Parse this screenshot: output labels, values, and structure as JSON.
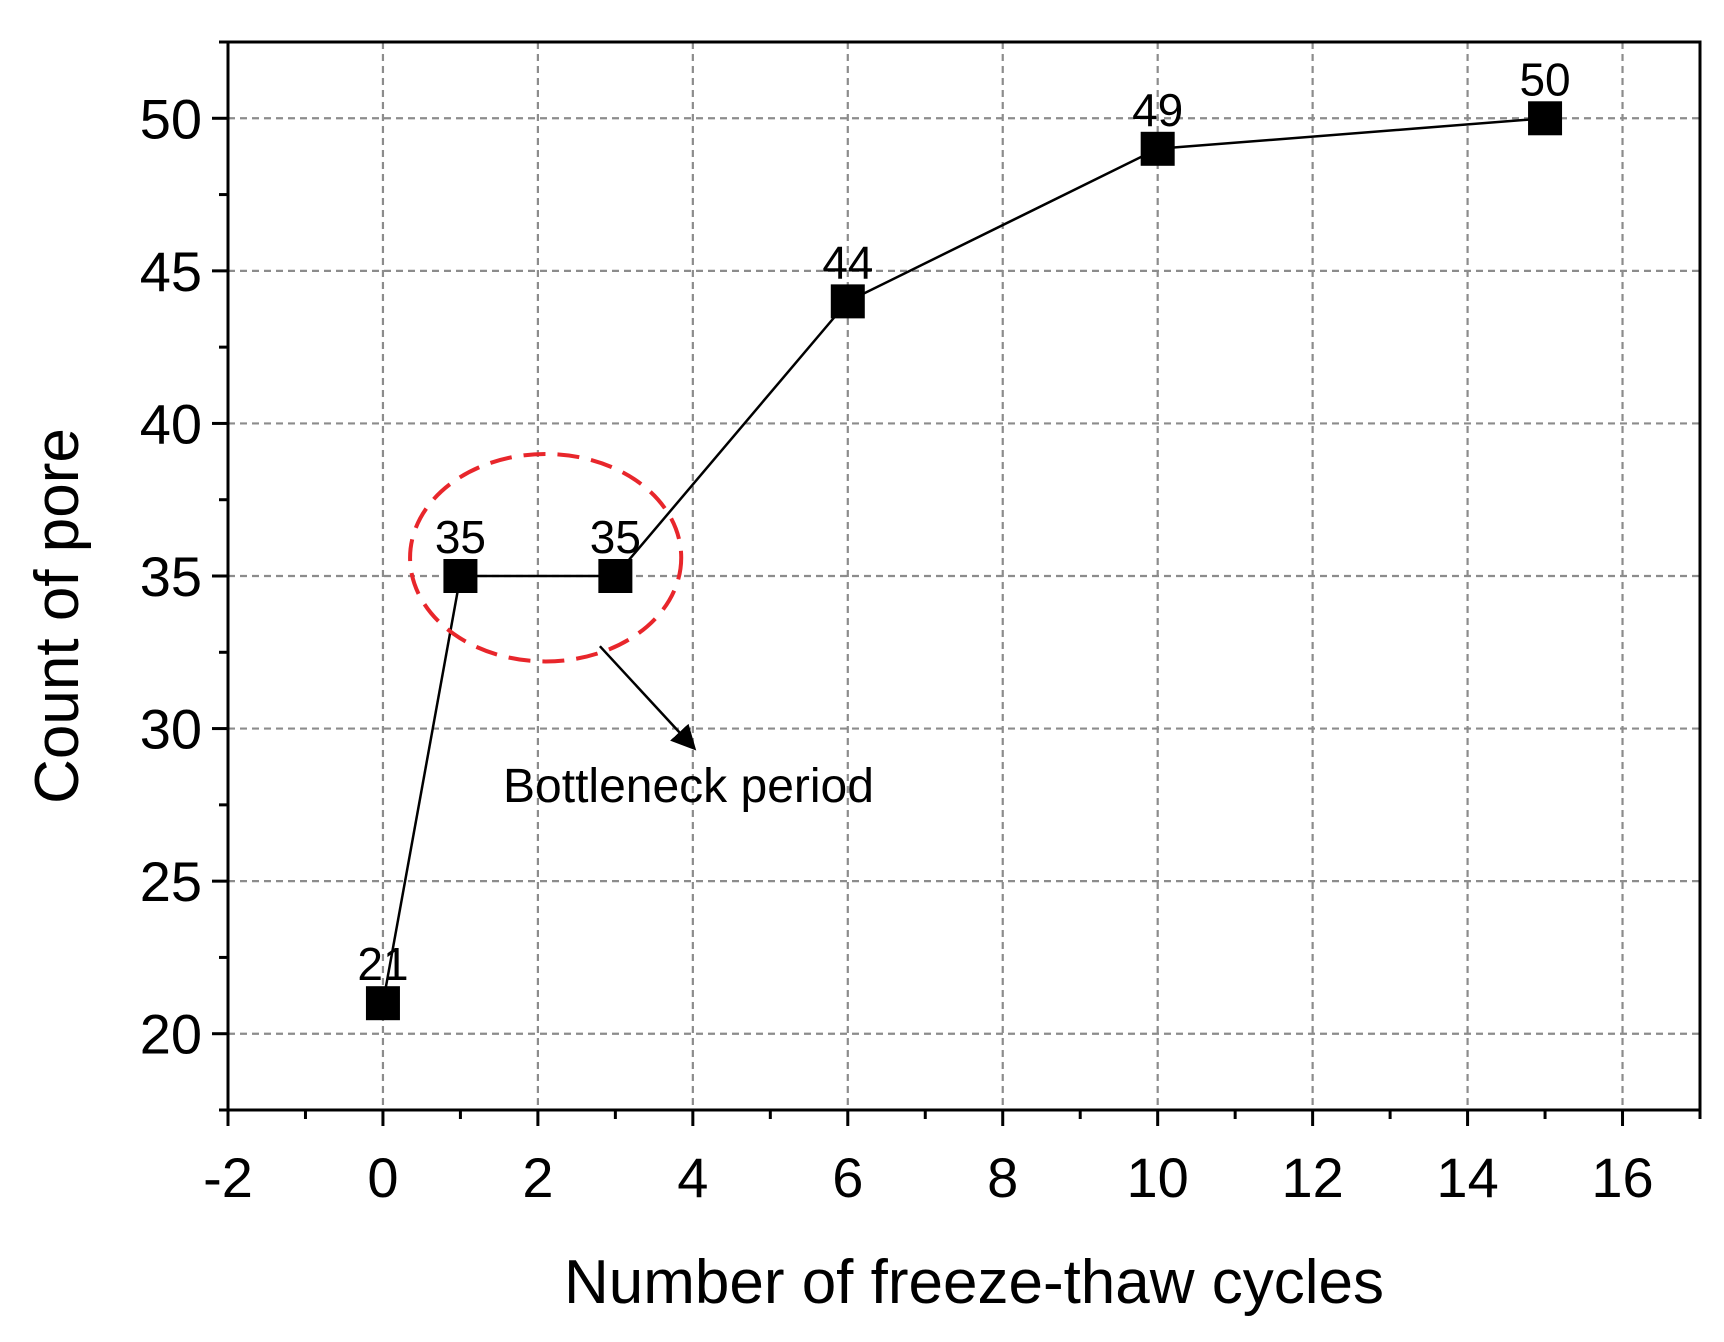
{
  "chart_data": {
    "type": "line",
    "title": "",
    "xlabel": "Number of freeze-thaw cycles",
    "ylabel": "Count of pore",
    "xlim": [
      -2,
      17
    ],
    "ylim": [
      17.5,
      52.5
    ],
    "x_ticks": [
      -2,
      0,
      2,
      4,
      6,
      8,
      10,
      12,
      14,
      16
    ],
    "y_ticks": [
      20,
      25,
      30,
      35,
      40,
      45,
      50
    ],
    "x_minor_step": 1,
    "y_minor_step": 2.5,
    "grid": true,
    "series": [
      {
        "name": "Count of pore",
        "marker": "square",
        "color": "#000000",
        "x": [
          0,
          1,
          3,
          6,
          10,
          15
        ],
        "y": [
          21,
          35,
          35,
          44,
          49,
          50
        ],
        "labels": [
          "21",
          "35",
          "35",
          "44",
          "49",
          "50"
        ]
      }
    ],
    "annotation": {
      "text": "Bottleneck period",
      "highlight_color": "#e8262b",
      "highlight_center": [
        2.1,
        35.6
      ],
      "highlight_radius": [
        1.75,
        3.4
      ],
      "arrow_from": [
        2.8,
        32.7
      ],
      "arrow_to": [
        4.0,
        29.4
      ],
      "text_anchor": [
        1.55,
        27.6
      ]
    }
  }
}
